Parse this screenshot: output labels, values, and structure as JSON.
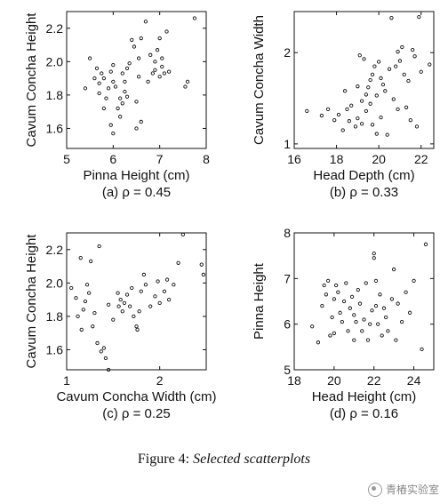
{
  "figure_caption": {
    "label": "Figure 4:",
    "text": "Selected scatterplots"
  },
  "watermark": {
    "icon": "wechat-icon",
    "text": "青樁实验室"
  },
  "chart_data": [
    {
      "type": "scatter",
      "panel_label": "(a)  ρ = 0.45",
      "xlabel": "Pinna Height (cm)",
      "ylabel": "Cavum Concha Height",
      "xlim": [
        5,
        8
      ],
      "ylim": [
        1.48,
        2.3
      ],
      "xticks": [
        "5",
        "6",
        "7",
        "8"
      ],
      "xtick_values": [
        5,
        6,
        7,
        8
      ],
      "yticks": [
        "1.6",
        "1.8",
        "2.0",
        "2.2"
      ],
      "ytick_values": [
        1.6,
        1.8,
        2.0,
        2.2
      ],
      "points": [
        [
          5.4,
          1.84
        ],
        [
          5.5,
          2.02
        ],
        [
          5.6,
          1.9
        ],
        [
          5.65,
          1.96
        ],
        [
          5.7,
          1.87
        ],
        [
          5.7,
          1.81
        ],
        [
          5.75,
          1.93
        ],
        [
          5.8,
          1.72
        ],
        [
          5.8,
          1.9
        ],
        [
          5.85,
          1.78
        ],
        [
          5.9,
          1.84
        ],
        [
          5.95,
          1.62
        ],
        [
          5.95,
          1.94
        ],
        [
          6.0,
          1.88
        ],
        [
          6.0,
          1.98
        ],
        [
          6.0,
          1.57
        ],
        [
          6.05,
          1.85
        ],
        [
          6.1,
          1.72
        ],
        [
          6.15,
          1.78
        ],
        [
          6.15,
          1.67
        ],
        [
          6.2,
          1.75
        ],
        [
          6.2,
          1.93
        ],
        [
          6.25,
          1.88
        ],
        [
          6.25,
          1.82
        ],
        [
          6.3,
          1.79
        ],
        [
          6.3,
          1.96
        ],
        [
          6.35,
          1.99
        ],
        [
          6.4,
          2.13
        ],
        [
          6.45,
          2.09
        ],
        [
          6.5,
          1.76
        ],
        [
          6.5,
          1.6
        ],
        [
          6.55,
          2.02
        ],
        [
          6.55,
          1.91
        ],
        [
          6.6,
          1.64
        ],
        [
          6.6,
          2.14
        ],
        [
          6.7,
          2.24
        ],
        [
          6.75,
          1.88
        ],
        [
          6.8,
          2.04
        ],
        [
          6.85,
          1.93
        ],
        [
          6.9,
          1.95
        ],
        [
          6.9,
          2.0
        ],
        [
          6.95,
          2.07
        ],
        [
          7.0,
          1.91
        ],
        [
          7.0,
          2.14
        ],
        [
          7.05,
          2.02
        ],
        [
          7.05,
          1.97
        ],
        [
          7.1,
          1.93
        ],
        [
          7.15,
          2.18
        ],
        [
          7.2,
          1.94
        ],
        [
          7.55,
          1.85
        ],
        [
          7.6,
          1.88
        ],
        [
          7.75,
          2.26
        ]
      ]
    },
    {
      "type": "scatter",
      "panel_label": "(b)  ρ = 0.33",
      "xlabel": "Head Depth (cm)",
      "ylabel": "Cavum Concha Width",
      "xlim": [
        16,
        22.6
      ],
      "ylim": [
        0.95,
        2.45
      ],
      "xticks": [
        "16",
        "18",
        "20",
        "22"
      ],
      "xtick_values": [
        16,
        18,
        20,
        22
      ],
      "yticks": [
        "1",
        "2"
      ],
      "ytick_values": [
        1,
        2
      ],
      "points": [
        [
          16.6,
          1.36
        ],
        [
          17.3,
          1.31
        ],
        [
          17.6,
          1.38
        ],
        [
          17.9,
          1.26
        ],
        [
          18.1,
          1.32
        ],
        [
          18.3,
          1.15
        ],
        [
          18.4,
          1.58
        ],
        [
          18.5,
          1.38
        ],
        [
          18.6,
          1.25
        ],
        [
          18.7,
          1.42
        ],
        [
          18.9,
          1.19
        ],
        [
          19.0,
          1.28
        ],
        [
          19.0,
          1.63
        ],
        [
          19.1,
          1.97
        ],
        [
          19.2,
          1.22
        ],
        [
          19.2,
          1.47
        ],
        [
          19.3,
          1.93
        ],
        [
          19.4,
          1.36
        ],
        [
          19.4,
          1.54
        ],
        [
          19.5,
          1.62
        ],
        [
          19.6,
          1.7
        ],
        [
          19.6,
          1.44
        ],
        [
          19.7,
          1.21
        ],
        [
          19.7,
          1.76
        ],
        [
          19.8,
          1.85
        ],
        [
          19.9,
          1.11
        ],
        [
          19.9,
          1.53
        ],
        [
          20.0,
          1.9
        ],
        [
          20.1,
          1.72
        ],
        [
          20.1,
          1.29
        ],
        [
          20.2,
          1.65
        ],
        [
          20.3,
          1.58
        ],
        [
          20.4,
          1.1
        ],
        [
          20.5,
          1.82
        ],
        [
          20.6,
          2.38
        ],
        [
          20.7,
          1.49
        ],
        [
          20.8,
          1.85
        ],
        [
          20.9,
          1.38
        ],
        [
          20.9,
          2.01
        ],
        [
          21.0,
          1.91
        ],
        [
          21.1,
          2.06
        ],
        [
          21.2,
          1.76
        ],
        [
          21.3,
          1.4
        ],
        [
          21.4,
          1.69
        ],
        [
          21.5,
          1.26
        ],
        [
          21.6,
          2.03
        ],
        [
          21.7,
          1.96
        ],
        [
          21.8,
          1.19
        ],
        [
          21.9,
          2.39
        ],
        [
          22.0,
          1.79
        ],
        [
          22.4,
          1.87
        ]
      ]
    },
    {
      "type": "scatter",
      "panel_label": "(c)  ρ = 0.25",
      "xlabel": "Cavum Concha Width (cm)",
      "ylabel": "Cavum Concha Height",
      "xlim": [
        1,
        2.5
      ],
      "ylim": [
        1.48,
        2.3
      ],
      "xticks": [
        "1",
        "2"
      ],
      "xtick_values": [
        1,
        2
      ],
      "yticks": [
        "1.6",
        "1.8",
        "2.0",
        "2.2"
      ],
      "ytick_values": [
        1.6,
        1.8,
        2.0,
        2.2
      ],
      "points": [
        [
          1.05,
          1.97
        ],
        [
          1.1,
          1.91
        ],
        [
          1.12,
          1.8
        ],
        [
          1.15,
          2.15
        ],
        [
          1.16,
          1.72
        ],
        [
          1.18,
          1.84
        ],
        [
          1.2,
          1.89
        ],
        [
          1.22,
          1.99
        ],
        [
          1.24,
          1.94
        ],
        [
          1.26,
          2.13
        ],
        [
          1.28,
          1.74
        ],
        [
          1.3,
          1.82
        ],
        [
          1.33,
          1.64
        ],
        [
          1.35,
          2.22
        ],
        [
          1.37,
          1.59
        ],
        [
          1.4,
          1.61
        ],
        [
          1.42,
          1.55
        ],
        [
          1.45,
          1.48
        ],
        [
          1.45,
          1.87
        ],
        [
          1.5,
          1.78
        ],
        [
          1.55,
          1.94
        ],
        [
          1.56,
          1.86
        ],
        [
          1.58,
          1.9
        ],
        [
          1.6,
          1.83
        ],
        [
          1.62,
          1.88
        ],
        [
          1.65,
          1.93
        ],
        [
          1.68,
          1.86
        ],
        [
          1.7,
          1.97
        ],
        [
          1.72,
          1.8
        ],
        [
          1.75,
          1.74
        ],
        [
          1.76,
          1.72
        ],
        [
          1.78,
          1.83
        ],
        [
          1.8,
          1.95
        ],
        [
          1.83,
          2.05
        ],
        [
          1.85,
          1.99
        ],
        [
          1.9,
          1.86
        ],
        [
          1.95,
          1.92
        ],
        [
          1.98,
          2.01
        ],
        [
          2.0,
          1.88
        ],
        [
          2.05,
          1.95
        ],
        [
          2.08,
          2.02
        ],
        [
          2.1,
          1.9
        ],
        [
          2.15,
          1.99
        ],
        [
          2.2,
          2.12
        ],
        [
          2.25,
          2.29
        ],
        [
          2.45,
          2.11
        ],
        [
          2.47,
          2.05
        ]
      ]
    },
    {
      "type": "scatter",
      "panel_label": "(d)  ρ = 0.16",
      "xlabel": "Head Height  (cm)",
      "ylabel": "Pinna Height",
      "xlim": [
        18,
        25
      ],
      "ylim": [
        5,
        8
      ],
      "xticks": [
        "18",
        "20",
        "22",
        "24"
      ],
      "xtick_values": [
        18,
        20,
        22,
        24
      ],
      "yticks": [
        "5",
        "6",
        "7",
        "8"
      ],
      "ytick_values": [
        5,
        6,
        7,
        8
      ],
      "points": [
        [
          18.9,
          5.95
        ],
        [
          19.2,
          5.6
        ],
        [
          19.4,
          6.4
        ],
        [
          19.5,
          6.85
        ],
        [
          19.6,
          6.65
        ],
        [
          19.7,
          6.95
        ],
        [
          19.8,
          5.75
        ],
        [
          19.9,
          6.15
        ],
        [
          20.0,
          6.55
        ],
        [
          20.0,
          5.8
        ],
        [
          20.1,
          6.85
        ],
        [
          20.2,
          6.7
        ],
        [
          20.3,
          6.25
        ],
        [
          20.4,
          6.05
        ],
        [
          20.5,
          6.5
        ],
        [
          20.6,
          6.9
        ],
        [
          20.7,
          5.85
        ],
        [
          20.8,
          6.35
        ],
        [
          20.9,
          6.6
        ],
        [
          21.0,
          6.2
        ],
        [
          21.0,
          5.65
        ],
        [
          21.1,
          6.05
        ],
        [
          21.2,
          6.75
        ],
        [
          21.3,
          6.45
        ],
        [
          21.4,
          5.85
        ],
        [
          21.5,
          6.1
        ],
        [
          21.6,
          6.9
        ],
        [
          21.7,
          5.65
        ],
        [
          21.8,
          6.0
        ],
        [
          21.9,
          6.3
        ],
        [
          22.0,
          7.45
        ],
        [
          22.0,
          7.55
        ],
        [
          22.1,
          6.95
        ],
        [
          22.1,
          6.4
        ],
        [
          22.2,
          6.0
        ],
        [
          22.3,
          6.65
        ],
        [
          22.4,
          5.75
        ],
        [
          22.5,
          6.35
        ],
        [
          22.6,
          6.15
        ],
        [
          22.7,
          5.85
        ],
        [
          22.9,
          6.55
        ],
        [
          23.0,
          7.2
        ],
        [
          23.1,
          5.65
        ],
        [
          23.2,
          6.45
        ],
        [
          23.4,
          6.05
        ],
        [
          23.6,
          6.7
        ],
        [
          23.8,
          6.25
        ],
        [
          24.0,
          6.95
        ],
        [
          24.4,
          5.45
        ],
        [
          24.6,
          7.75
        ]
      ]
    }
  ]
}
